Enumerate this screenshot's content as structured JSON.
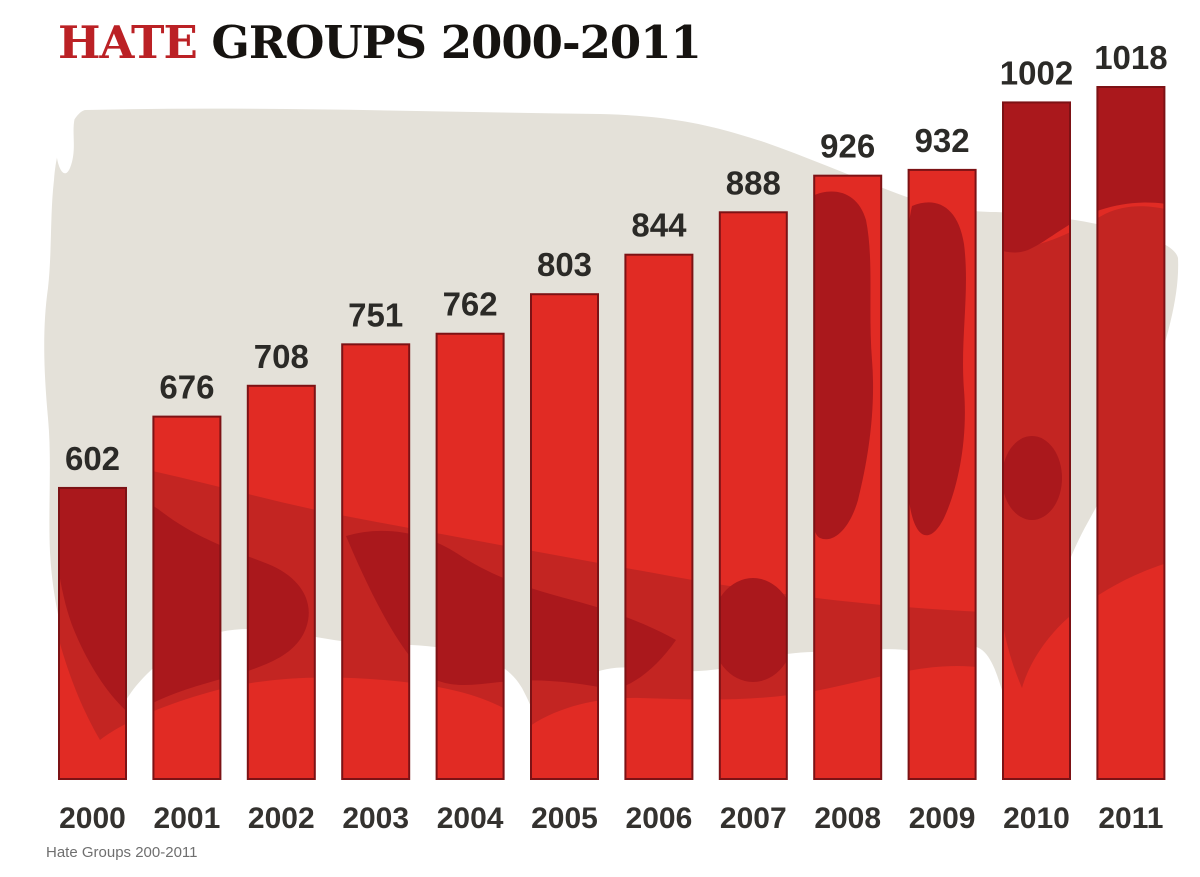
{
  "title": {
    "highlight": "HATE",
    "rest": " GROUPS 2000-2011"
  },
  "caption": "Hate Groups 200-2011",
  "chart_data": {
    "type": "bar",
    "title": "HATE GROUPS 2000-2011",
    "categories": [
      "2000",
      "2001",
      "2002",
      "2003",
      "2004",
      "2005",
      "2006",
      "2007",
      "2008",
      "2009",
      "2010",
      "2011"
    ],
    "values": [
      602,
      676,
      708,
      751,
      762,
      803,
      844,
      888,
      926,
      932,
      1002,
      1018
    ],
    "value_labels_shown": true,
    "xlabel": "",
    "ylabel": "",
    "baseline_value": 300,
    "ylim": [
      300,
      1018
    ],
    "grid": false,
    "legend": "none",
    "background_art": "us-map-silhouette",
    "colors": {
      "background": "#ffffff",
      "map_background": "#e4e1d9",
      "bar": "#e12b24",
      "bar_stroke": "#7c1215",
      "overlay_medium": "#c32522",
      "overlay_dark": "#aa181c",
      "title_highlight": "#bb2125",
      "title_text": "#161310",
      "label_text": "#2b2a27",
      "axis_text": "#34322f",
      "caption_text": "#6f6f6f"
    }
  }
}
